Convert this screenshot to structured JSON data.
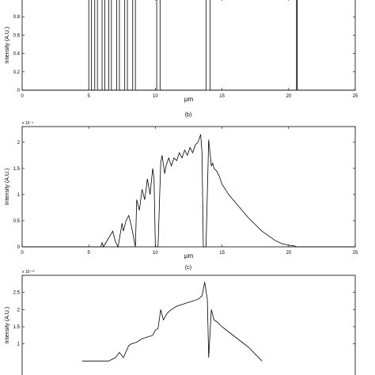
{
  "chart_data": [
    {
      "type": "line",
      "panel_label": "",
      "ylabel": "Intensity (A.U.)",
      "xlabel": "μm",
      "exponent": "",
      "xlim": [
        0,
        25
      ],
      "ylim": [
        0,
        1
      ],
      "xticks": [
        0,
        5,
        10,
        15,
        20,
        25
      ],
      "yticks": [
        0,
        0.2,
        0.4,
        0.6,
        0.8
      ],
      "xtick_labels": [
        "0",
        "5",
        "10",
        "15",
        "20",
        "25"
      ],
      "ytick_labels": [
        "0",
        "0.2",
        "0.4",
        "0.6",
        "0.8"
      ],
      "kind": "binary",
      "edges": [
        5.0,
        5.2,
        5.45,
        5.65,
        6.0,
        6.2,
        6.5,
        6.7,
        7.1,
        7.3,
        7.7,
        7.9,
        8.3,
        8.5,
        10.1,
        10.35,
        13.8,
        14.1,
        20.6,
        20.65
      ]
    },
    {
      "type": "line",
      "panel_label": "(b)",
      "ylabel": "Intensity (A.U.)",
      "xlabel": "μm",
      "exponent": "x 10⁻⁴",
      "xlim": [
        0,
        25
      ],
      "ylim": [
        0,
        2.3
      ],
      "xticks": [
        0,
        5,
        10,
        15,
        20,
        25
      ],
      "yticks": [
        0,
        0.5,
        1,
        1.5,
        2
      ],
      "xtick_labels": [
        "0",
        "5",
        "10",
        "15",
        "20",
        "25"
      ],
      "ytick_labels": [
        "0",
        "0.5",
        "1",
        "1.5",
        "2"
      ],
      "kind": "smooth",
      "x": [
        0,
        5.9,
        6.0,
        6.1,
        6.8,
        7.0,
        7.2,
        7.5,
        7.6,
        7.8,
        8.0,
        8.2,
        8.5,
        8.6,
        8.8,
        9.0,
        9.2,
        9.4,
        9.6,
        9.8,
        9.9,
        10.0,
        10.2,
        10.4,
        10.5,
        10.7,
        10.8,
        11.0,
        11.2,
        11.4,
        11.6,
        11.8,
        12.0,
        12.2,
        12.4,
        12.6,
        12.8,
        13.0,
        13.2,
        13.4,
        13.5,
        13.6,
        13.7,
        13.8,
        14.0,
        14.2,
        14.3,
        14.4,
        14.6,
        14.8,
        15.0,
        15.5,
        16.0,
        17.0,
        18.0,
        19.0,
        19.5,
        20.0,
        20.4,
        20.6,
        21.0,
        25.0
      ],
      "y": [
        0,
        0,
        0.08,
        0,
        0.3,
        0.1,
        0,
        0.45,
        0.3,
        0.5,
        0.6,
        0.4,
        0,
        0.9,
        0.7,
        1.1,
        0.9,
        1.3,
        1.0,
        1.5,
        1.3,
        0,
        0,
        1.6,
        1.75,
        1.4,
        1.55,
        1.7,
        1.55,
        1.7,
        1.65,
        1.8,
        1.7,
        1.85,
        1.75,
        1.9,
        1.8,
        1.95,
        2.0,
        2.15,
        1.8,
        0,
        0,
        0,
        2.05,
        1.55,
        1.6,
        1.5,
        1.45,
        1.35,
        1.2,
        1.0,
        0.85,
        0.55,
        0.3,
        0.12,
        0.06,
        0.03,
        0.02,
        0,
        0,
        0
      ]
    },
    {
      "type": "line",
      "panel_label": "(c)",
      "ylabel": "Intensity (A.U.)",
      "xlabel": "",
      "exponent": "x 10⁻¹⁰",
      "xlim": [
        0,
        25
      ],
      "ylim": [
        0,
        3.0
      ],
      "xticks": [],
      "yticks": [
        1,
        1.5,
        2,
        2.5
      ],
      "xtick_labels": [],
      "ytick_labels": [
        "1",
        "1.5",
        "2",
        "2.5"
      ],
      "kind": "smooth",
      "x": [
        4.5,
        6.5,
        7.0,
        7.3,
        7.6,
        8.0,
        8.2,
        8.6,
        9.0,
        9.4,
        9.8,
        10.0,
        10.2,
        10.4,
        10.6,
        10.9,
        11.2,
        11.6,
        12.0,
        12.4,
        12.8,
        13.2,
        13.5,
        13.7,
        13.9,
        14.0,
        14.2,
        14.4,
        14.6,
        15.0,
        15.5,
        16.0,
        16.5,
        17.0,
        17.5,
        18.0
      ],
      "y": [
        0.5,
        0.5,
        0.6,
        0.75,
        0.6,
        0.95,
        1.0,
        1.05,
        1.15,
        1.2,
        1.25,
        1.4,
        1.45,
        2.0,
        1.7,
        1.9,
        2.0,
        2.1,
        2.15,
        2.2,
        2.25,
        2.3,
        2.4,
        2.8,
        2.3,
        0.6,
        2.0,
        1.7,
        1.65,
        1.5,
        1.35,
        1.2,
        1.05,
        0.9,
        0.7,
        0.5
      ]
    }
  ]
}
